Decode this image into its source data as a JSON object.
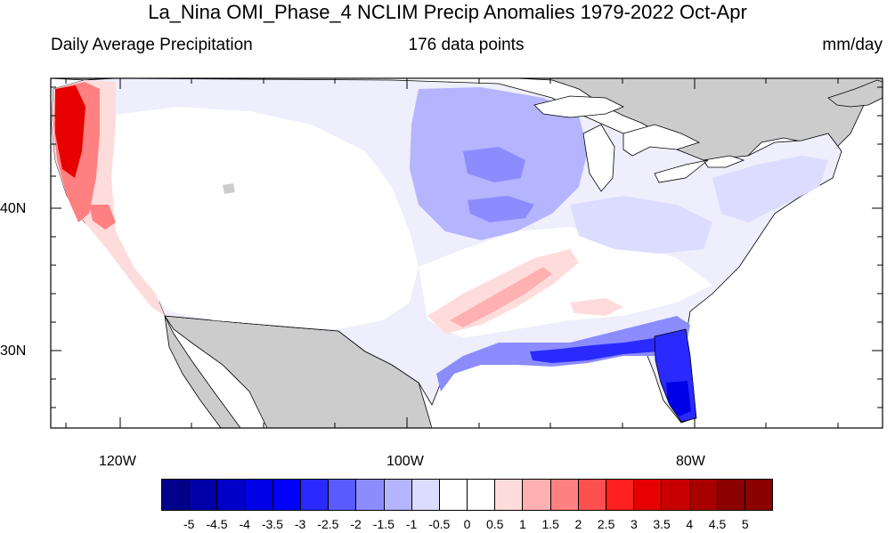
{
  "figure": {
    "title": "La_Nina OMI_Phase_4 NCLIM Precip Anomalies 1979-2022 Oct-Apr",
    "left_subtitle": "Daily Average Precipitation",
    "center_subtitle": "176 data points",
    "right_subtitle": "mm/day"
  },
  "map": {
    "projection": "cylindrical equidistant",
    "lon_range": [
      -125,
      -67
    ],
    "lat_range": [
      24.5,
      49.5
    ],
    "lat_labels": [
      "40N",
      "30N"
    ],
    "lon_labels": [
      "120W",
      "100W",
      "80W"
    ],
    "land_outside_domain_color": "#cccccc",
    "anomaly_regions": [
      {
        "region": "Pacific Northwest coast",
        "anomaly": "strong positive",
        "approx_mm_day": "2.5 to 4"
      },
      {
        "region": "Northern California coast",
        "anomaly": "positive",
        "approx_mm_day": "1 to 2"
      },
      {
        "region": "Upper Midwest",
        "anomaly": "negative",
        "approx_mm_day": "-1 to -1.5"
      },
      {
        "region": "Arkansas / Lower Mississippi valley",
        "anomaly": "positive",
        "approx_mm_day": "0.5 to 1.5"
      },
      {
        "region": "Gulf Coast",
        "anomaly": "negative",
        "approx_mm_day": "-1.5 to -2.5"
      },
      {
        "region": "Florida peninsula",
        "anomaly": "strong negative",
        "approx_mm_day": "-2 to -3"
      }
    ]
  },
  "colorbar": {
    "labels": [
      "-5",
      "-4.5",
      "-4",
      "-3.5",
      "-3",
      "-2.5",
      "-2",
      "-1.5",
      "-1",
      "-0.5",
      "0",
      "0.5",
      "1",
      "1.5",
      "2",
      "2.5",
      "3",
      "3.5",
      "4",
      "4.5",
      "5"
    ],
    "colors": [
      "#00008b",
      "#0000a8",
      "#0000c8",
      "#0000e6",
      "#0000ff",
      "#2a2aff",
      "#5a5aff",
      "#8c8cff",
      "#b4b4ff",
      "#dcdcff",
      "#ffffff",
      "#ffffff",
      "#ffdcdc",
      "#ffb0b0",
      "#ff8080",
      "#ff5050",
      "#ff2020",
      "#e60000",
      "#c80000",
      "#a80000",
      "#8b0000",
      "#8b0000"
    ]
  }
}
